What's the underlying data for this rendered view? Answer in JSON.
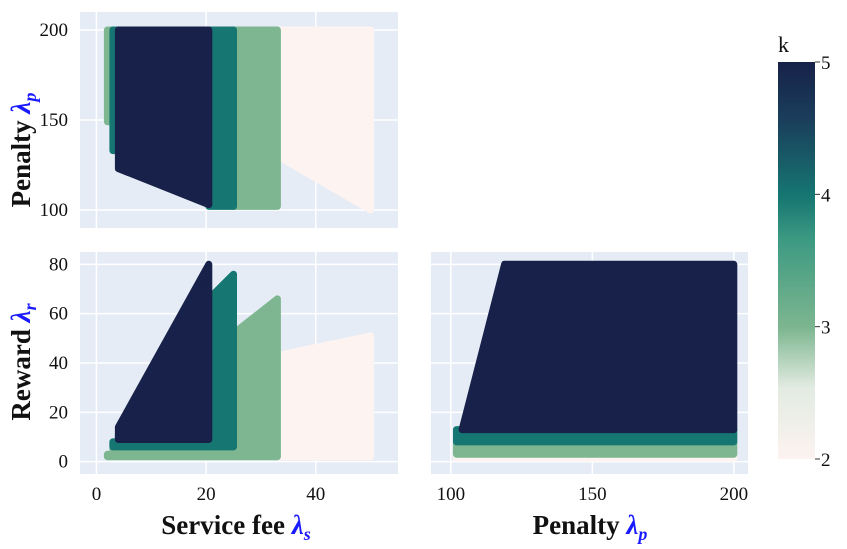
{
  "chart_data": {
    "type": "scatter",
    "colorbar": {
      "title": "k",
      "range": [
        2,
        5
      ],
      "ticks": [
        "2",
        "3",
        "4",
        "5"
      ],
      "colors": {
        "2": "#fdf3f1",
        "3": "#7db690",
        "4": "#167772",
        "5": "#172149"
      }
    },
    "axis_text": {
      "service_fee": "Service fee ",
      "penalty": "Penalty ",
      "reward": "Reward ",
      "lambda": "λ",
      "sub_s": "s",
      "sub_p": "p",
      "sub_r": "r"
    },
    "panels": [
      {
        "id": "fee-vs-penalty",
        "xlim": [
          -3,
          55
        ],
        "ylim": [
          90,
          210
        ],
        "xticks": [
          0,
          20,
          40
        ],
        "xticklabels": [
          "",
          "",
          ""
        ],
        "yticks": [
          100,
          150,
          200
        ],
        "yticklabels": [
          "100",
          "150",
          "200"
        ],
        "ylabel": "Penalty λp",
        "regions": [
          {
            "k": 2,
            "points": [
              [
                33,
                200
              ],
              [
                50,
                200
              ],
              [
                50,
                100
              ],
              [
                33,
                130
              ]
            ]
          },
          {
            "k": 3,
            "points": [
              [
                2,
                200
              ],
              [
                33,
                200
              ],
              [
                33,
                102
              ],
              [
                25,
                102
              ],
              [
                25,
                149
              ],
              [
                2,
                149
              ]
            ]
          },
          {
            "k": 4,
            "points": [
              [
                3,
                200
              ],
              [
                25,
                200
              ],
              [
                25,
                102
              ],
              [
                20.5,
                102
              ],
              [
                20.5,
                133
              ],
              [
                3,
                133
              ]
            ]
          },
          {
            "k": 5,
            "points": [
              [
                4,
                200
              ],
              [
                20.5,
                200
              ],
              [
                20.5,
                103
              ],
              [
                4,
                123
              ]
            ]
          }
        ]
      },
      {
        "id": "fee-vs-reward",
        "xlim": [
          -3,
          55
        ],
        "ylim": [
          -5,
          85
        ],
        "xticks": [
          0,
          20,
          40
        ],
        "xticklabels": [
          "0",
          "20",
          "40"
        ],
        "yticks": [
          0,
          20,
          40,
          60,
          80
        ],
        "yticklabels": [
          "0",
          "20",
          "40",
          "60",
          "80"
        ],
        "xlabel": "Service fee λs",
        "ylabel": "Reward λr",
        "regions": [
          {
            "k": 2,
            "points": [
              [
                2,
                2
              ],
              [
                50,
                2
              ],
              [
                50,
                51
              ],
              [
                33,
                43
              ],
              [
                33,
                2
              ]
            ]
          },
          {
            "k": 3,
            "points": [
              [
                2,
                2
              ],
              [
                33,
                2
              ],
              [
                33,
                66
              ],
              [
                25,
                52
              ],
              [
                25,
                8
              ],
              [
                3,
                8
              ],
              [
                3,
                3
              ],
              [
                2,
                3
              ]
            ]
          },
          {
            "k": 4,
            "points": [
              [
                3,
                6
              ],
              [
                25,
                6
              ],
              [
                25,
                76
              ],
              [
                20.5,
                66
              ],
              [
                20.5,
                11
              ],
              [
                4,
                11
              ],
              [
                4,
                8
              ],
              [
                3,
                8
              ]
            ]
          },
          {
            "k": 5,
            "points": [
              [
                4,
                9
              ],
              [
                20.5,
                9
              ],
              [
                20.5,
                80
              ],
              [
                4,
                14
              ]
            ]
          }
        ]
      },
      {
        "id": "penalty-vs-reward",
        "xlim": [
          93,
          205
        ],
        "ylim": [
          -5,
          85
        ],
        "xticks": [
          100,
          150,
          200
        ],
        "xticklabels": [
          "100",
          "150",
          "200"
        ],
        "yticks": [
          0,
          20,
          40,
          60,
          80
        ],
        "yticklabels": [
          "",
          "",
          "",
          "",
          ""
        ],
        "xlabel": "Penalty λp",
        "regions": [
          {
            "k": 2,
            "points": [
              [
                102,
                1.5
              ],
              [
                200,
                1.5
              ],
              [
                200,
                3
              ],
              [
                102,
                3
              ]
            ]
          },
          {
            "k": 3,
            "points": [
              [
                102,
                3
              ],
              [
                200,
                3
              ],
              [
                200,
                8
              ],
              [
                102,
                8
              ]
            ]
          },
          {
            "k": 4,
            "points": [
              [
                102,
                8
              ],
              [
                200,
                8
              ],
              [
                200,
                13
              ],
              [
                102,
                13
              ]
            ]
          },
          {
            "k": 5,
            "points": [
              [
                104,
                13
              ],
              [
                200,
                13
              ],
              [
                200,
                80
              ],
              [
                119,
                80
              ]
            ]
          }
        ]
      }
    ]
  }
}
